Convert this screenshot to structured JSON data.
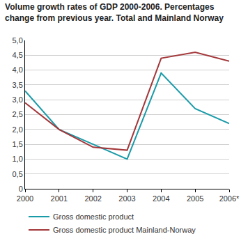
{
  "chart_data": {
    "type": "line",
    "title": "Volume growth rates of GDP 2000-2006. Percentages change from previous year. Total and Mainland Norway",
    "categories": [
      "2000",
      "2001",
      "2002",
      "2003",
      "2004",
      "2005",
      "2006*"
    ],
    "series": [
      {
        "name": "Gross domestic product",
        "color": "#1a9ba8",
        "values": [
          3.3,
          2.0,
          1.5,
          1.0,
          3.9,
          2.7,
          2.2
        ]
      },
      {
        "name": "Gross domestic product Mainland-Norway",
        "color": "#a3373a",
        "values": [
          2.9,
          2.0,
          1.4,
          1.3,
          4.4,
          4.6,
          4.3
        ]
      }
    ],
    "ylim": [
      0,
      5
    ],
    "yticks": [
      0,
      {
        "value": 0.5,
        "label": "0,5"
      },
      {
        "value": 1,
        "label": "1,0"
      },
      {
        "value": 1.5,
        "label": "1,5"
      },
      {
        "value": 2,
        "label": "2,0"
      },
      {
        "value": 2.5,
        "label": "2,5"
      },
      {
        "value": 3,
        "label": "3,0"
      },
      {
        "value": 3.5,
        "label": "3,5"
      },
      {
        "value": 4,
        "label": "4,0"
      },
      {
        "value": 4.5,
        "label": "4,5"
      },
      {
        "value": 5,
        "label": "5,0"
      }
    ],
    "grid": true,
    "legend": "bottom"
  }
}
